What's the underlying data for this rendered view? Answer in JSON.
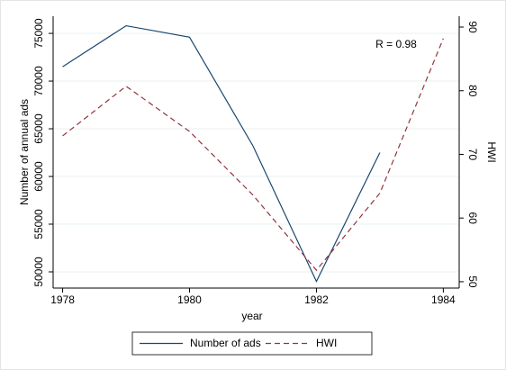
{
  "chart_data": {
    "type": "line",
    "x": [
      1978,
      1979,
      1980,
      1981,
      1982,
      1983,
      1984
    ],
    "series": [
      {
        "name": "Number of ads",
        "color": "#1a476f",
        "dash": "solid",
        "values": [
          71500,
          75800,
          74600,
          63200,
          49000,
          62500,
          null
        ]
      },
      {
        "name": "HWI",
        "color": "#90353b",
        "dash": "dashed",
        "axis": "y2",
        "values": [
          72.9,
          80.7,
          73.6,
          63.6,
          51.8,
          63.9,
          88.2
        ]
      }
    ],
    "xlim": [
      1977.85,
      1984.25
    ],
    "xticks": [
      1978,
      1980,
      1982,
      1984
    ],
    "ylim": [
      48300,
      76800
    ],
    "yticks": [
      50000,
      55000,
      60000,
      65000,
      70000,
      75000
    ],
    "y2lim": [
      49,
      91.7
    ],
    "y2ticks": [
      50,
      60,
      70,
      80,
      90
    ],
    "x_label": "year",
    "y_label": "Number of annual ads",
    "y2_label": "HWI",
    "annotation": "R = 0.98",
    "grid": true
  }
}
